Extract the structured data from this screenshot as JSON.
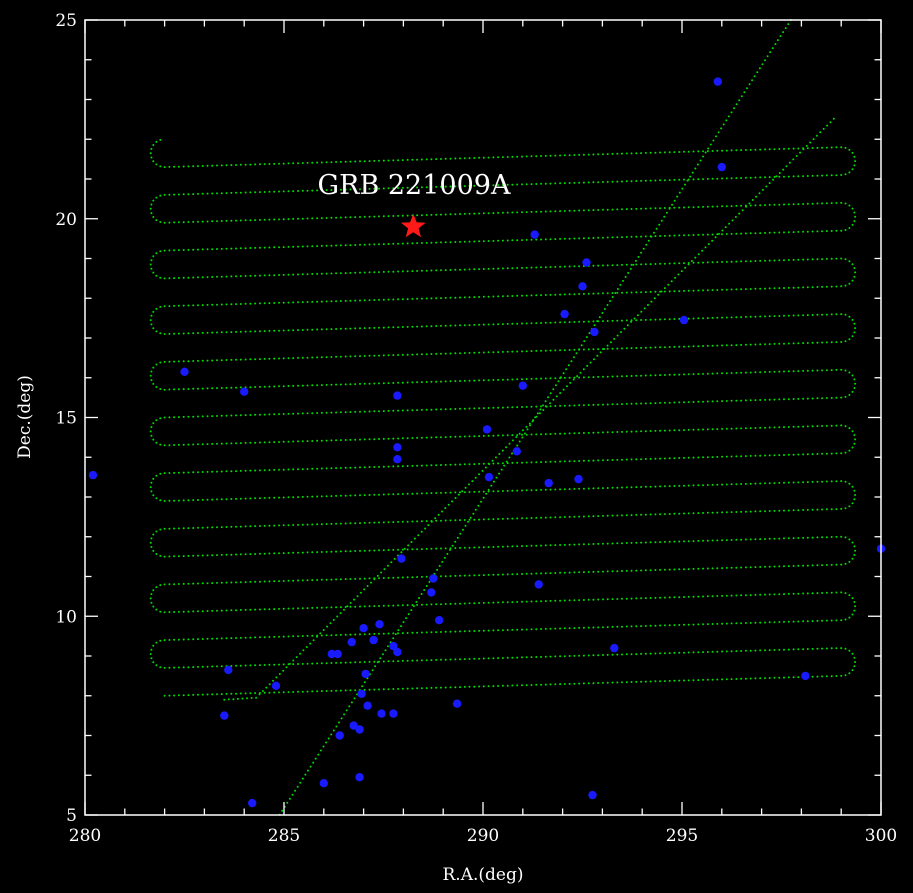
{
  "chart_data": {
    "type": "scatter",
    "xlabel": "R.A.(deg)",
    "ylabel": "Dec.(deg)",
    "xlim": [
      280,
      300
    ],
    "ylim": [
      5,
      25
    ],
    "xticks": [
      280,
      285,
      290,
      295,
      300
    ],
    "yticks": [
      5,
      10,
      15,
      20,
      25
    ],
    "x_minor_step": 1,
    "y_minor_step": 1,
    "grid": false,
    "colors": {
      "background": "#000000",
      "axes": "#ffffff",
      "scan": "#00dd00",
      "sources": "#1a1aff",
      "target": "#ff1a1a"
    },
    "scan_pattern": {
      "rows": 20,
      "dec_start_west": 8.0,
      "dec_start_east": 8.5,
      "dec_step": 0.7,
      "ra_west": 282.0,
      "ra_east": 299.0,
      "dot_spacing_deg": 0.12
    },
    "scan_track": [
      [
        284.5,
        4.4
      ],
      [
        297.8,
        25.1
      ]
    ],
    "scan_return": [
      [
        283.5,
        7.9
      ],
      [
        284.3,
        7.95
      ],
      [
        298.9,
        22.6
      ]
    ],
    "target": {
      "label": "GRB 221009A",
      "ra": 288.25,
      "dec": 19.8
    },
    "sources": [
      [
        280.2,
        13.55
      ],
      [
        282.5,
        16.15
      ],
      [
        283.5,
        7.5
      ],
      [
        283.6,
        8.65
      ],
      [
        284.0,
        15.65
      ],
      [
        284.2,
        5.3
      ],
      [
        284.8,
        8.25
      ],
      [
        286.0,
        5.8
      ],
      [
        286.2,
        9.05
      ],
      [
        286.35,
        9.05
      ],
      [
        286.4,
        7.0
      ],
      [
        286.7,
        9.35
      ],
      [
        286.75,
        7.25
      ],
      [
        286.9,
        7.15
      ],
      [
        286.9,
        5.95
      ],
      [
        286.95,
        8.05
      ],
      [
        287.0,
        9.7
      ],
      [
        287.05,
        8.55
      ],
      [
        287.1,
        7.75
      ],
      [
        287.25,
        9.4
      ],
      [
        287.4,
        9.8
      ],
      [
        287.45,
        7.55
      ],
      [
        287.75,
        7.55
      ],
      [
        287.75,
        9.25
      ],
      [
        287.85,
        9.1
      ],
      [
        287.85,
        15.55
      ],
      [
        287.85,
        14.25
      ],
      [
        287.85,
        13.95
      ],
      [
        287.95,
        11.45
      ],
      [
        288.7,
        10.6
      ],
      [
        288.75,
        10.95
      ],
      [
        288.9,
        9.9
      ],
      [
        289.35,
        7.8
      ],
      [
        290.1,
        14.7
      ],
      [
        290.15,
        13.5
      ],
      [
        290.85,
        14.15
      ],
      [
        291.0,
        15.8
      ],
      [
        291.3,
        19.6
      ],
      [
        291.4,
        10.8
      ],
      [
        291.65,
        13.35
      ],
      [
        292.05,
        17.6
      ],
      [
        292.4,
        13.45
      ],
      [
        292.5,
        18.3
      ],
      [
        292.6,
        18.9
      ],
      [
        292.75,
        5.5
      ],
      [
        292.8,
        17.15
      ],
      [
        293.3,
        9.2
      ],
      [
        295.05,
        17.45
      ],
      [
        295.9,
        23.45
      ],
      [
        296.0,
        21.3
      ],
      [
        298.1,
        8.5
      ],
      [
        300.0,
        11.7
      ]
    ]
  }
}
